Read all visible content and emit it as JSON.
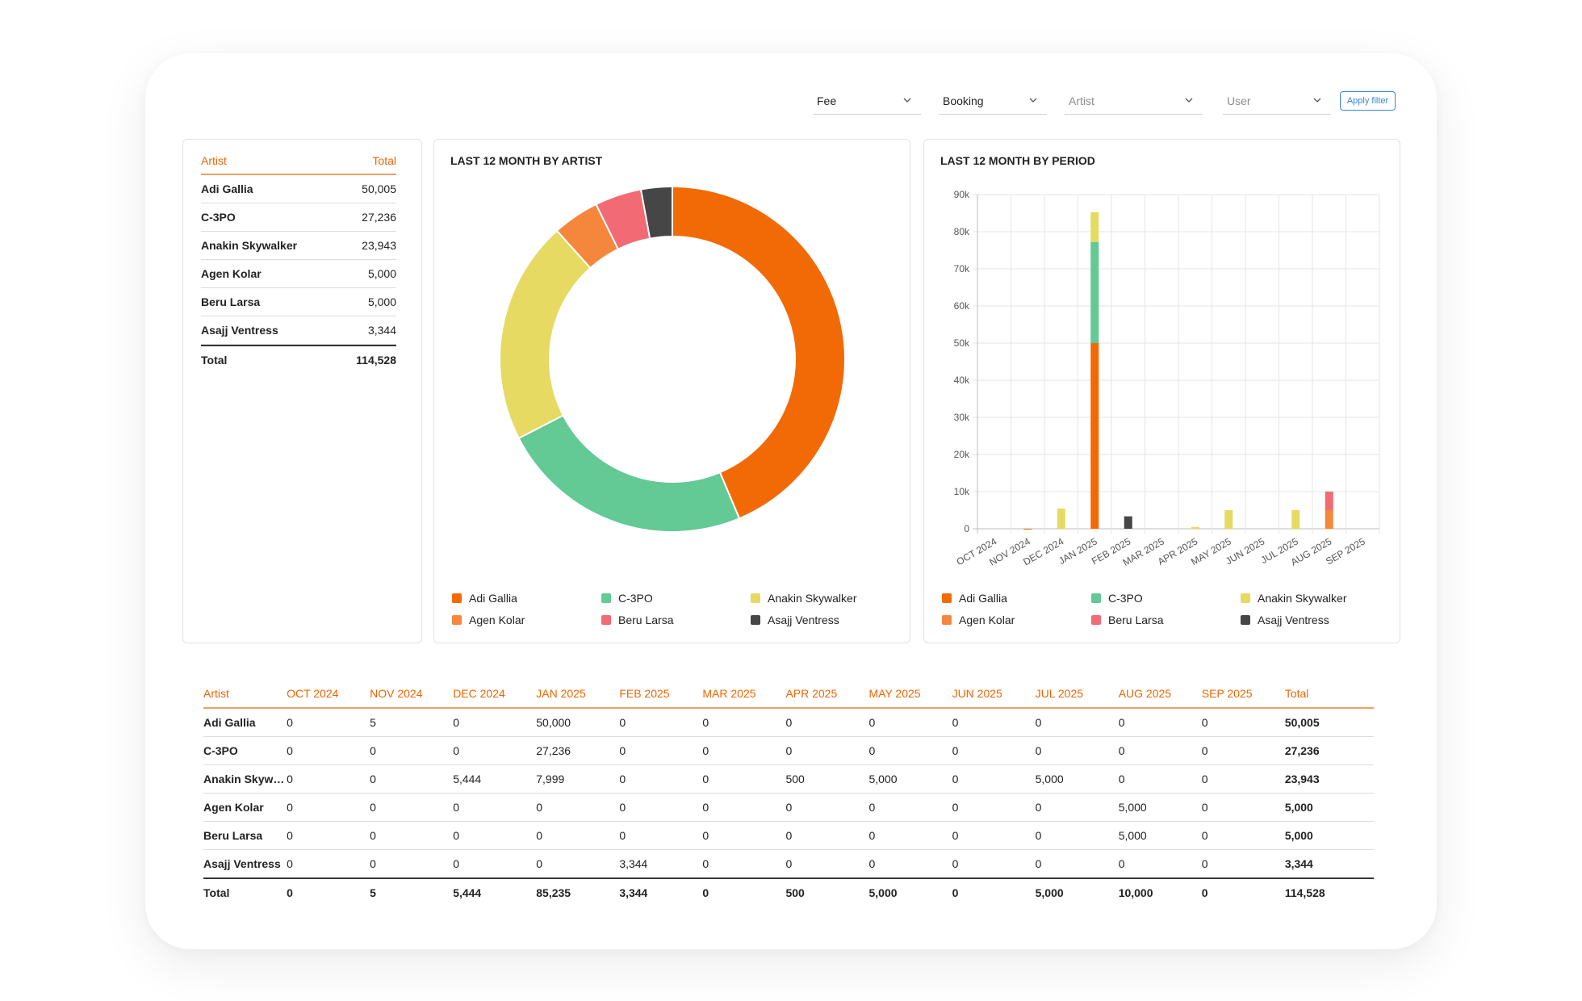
{
  "filters": [
    {
      "label": "Fee",
      "placeholder": false
    },
    {
      "label": "Booking",
      "placeholder": false
    },
    {
      "label": "Artist",
      "placeholder": true
    },
    {
      "label": "User",
      "placeholder": true
    }
  ],
  "apply_label": "Apply filter",
  "summary": {
    "col_artist": "Artist",
    "col_total": "Total",
    "rows": [
      {
        "name": "Adi Gallia",
        "total": "50,005"
      },
      {
        "name": "C-3PO",
        "total": "27,236"
      },
      {
        "name": "Anakin Skywalker",
        "total": "23,943"
      },
      {
        "name": "Agen Kolar",
        "total": "5,000"
      },
      {
        "name": "Beru Larsa",
        "total": "5,000"
      },
      {
        "name": "Asajj Ventress",
        "total": "3,344"
      }
    ],
    "total_label": "Total",
    "total_value": "114,528"
  },
  "colors": {
    "Adi Gallia": "#f26a06",
    "C-3PO": "#63c995",
    "Anakin Skywalker": "#e6da62",
    "Agen Kolar": "#f5873d",
    "Beru Larsa": "#f26b74",
    "Asajj Ventress": "#464646"
  },
  "legend": [
    "Adi Gallia",
    "C-3PO",
    "Anakin Skywalker",
    "Agen Kolar",
    "Beru Larsa",
    "Asajj Ventress"
  ],
  "chart_data": [
    {
      "type": "pie",
      "title": "LAST 12 MONTH BY ARTIST",
      "categories": [
        "Adi Gallia",
        "C-3PO",
        "Anakin Skywalker",
        "Agen Kolar",
        "Beru Larsa",
        "Asajj Ventress"
      ],
      "values": [
        50005,
        27236,
        23943,
        5000,
        5000,
        3344
      ],
      "legend": "bottom"
    },
    {
      "type": "bar",
      "stacked": true,
      "title": "LAST 12 MONTH BY PERIOD",
      "categories": [
        "OCT 2024",
        "NOV 2024",
        "DEC 2024",
        "JAN 2025",
        "FEB 2025",
        "MAR 2025",
        "APR 2025",
        "MAY 2025",
        "JUN 2025",
        "JUL 2025",
        "AUG 2025",
        "SEP 2025"
      ],
      "series": [
        {
          "name": "Adi Gallia",
          "values": [
            0,
            5,
            0,
            50000,
            0,
            0,
            0,
            0,
            0,
            0,
            0,
            0
          ]
        },
        {
          "name": "C-3PO",
          "values": [
            0,
            0,
            0,
            27236,
            0,
            0,
            0,
            0,
            0,
            0,
            0,
            0
          ]
        },
        {
          "name": "Anakin Skywalker",
          "values": [
            0,
            0,
            5444,
            7999,
            0,
            0,
            500,
            5000,
            0,
            5000,
            0,
            0
          ]
        },
        {
          "name": "Agen Kolar",
          "values": [
            0,
            0,
            0,
            0,
            0,
            0,
            0,
            0,
            0,
            0,
            5000,
            0
          ]
        },
        {
          "name": "Beru Larsa",
          "values": [
            0,
            0,
            0,
            0,
            0,
            0,
            0,
            0,
            0,
            0,
            5000,
            0
          ]
        },
        {
          "name": "Asajj Ventress",
          "values": [
            0,
            0,
            0,
            0,
            3344,
            0,
            0,
            0,
            0,
            0,
            0,
            0
          ]
        }
      ],
      "yticks": [
        "0",
        "10k",
        "20k",
        "30k",
        "40k",
        "50k",
        "60k",
        "70k",
        "80k",
        "90k"
      ],
      "ylim": [
        0,
        90000
      ],
      "grid": true,
      "legend": "bottom"
    }
  ],
  "table": {
    "headers": [
      "Artist",
      "OCT 2024",
      "NOV 2024",
      "DEC 2024",
      "JAN 2025",
      "FEB 2025",
      "MAR 2025",
      "APR 2025",
      "MAY 2025",
      "JUN 2025",
      "JUL 2025",
      "AUG 2025",
      "SEP 2025",
      "Total"
    ],
    "rows": [
      [
        "Adi Gallia",
        "0",
        "5",
        "0",
        "50,000",
        "0",
        "0",
        "0",
        "0",
        "0",
        "0",
        "0",
        "0",
        "50,005"
      ],
      [
        "C-3PO",
        "0",
        "0",
        "0",
        "27,236",
        "0",
        "0",
        "0",
        "0",
        "0",
        "0",
        "0",
        "0",
        "27,236"
      ],
      [
        "Anakin Skywalker",
        "0",
        "0",
        "5,444",
        "7,999",
        "0",
        "0",
        "500",
        "5,000",
        "0",
        "5,000",
        "0",
        "0",
        "23,943"
      ],
      [
        "Agen Kolar",
        "0",
        "0",
        "0",
        "0",
        "0",
        "0",
        "0",
        "0",
        "0",
        "0",
        "5,000",
        "0",
        "5,000"
      ],
      [
        "Beru Larsa",
        "0",
        "0",
        "0",
        "0",
        "0",
        "0",
        "0",
        "0",
        "0",
        "0",
        "5,000",
        "0",
        "5,000"
      ],
      [
        "Asajj Ventress",
        "0",
        "0",
        "0",
        "0",
        "3,344",
        "0",
        "0",
        "0",
        "0",
        "0",
        "0",
        "0",
        "3,344"
      ]
    ],
    "total_row": [
      "Total",
      "0",
      "5",
      "5,444",
      "85,235",
      "3,344",
      "0",
      "500",
      "5,000",
      "0",
      "5,000",
      "10,000",
      "0",
      "114,528"
    ]
  }
}
